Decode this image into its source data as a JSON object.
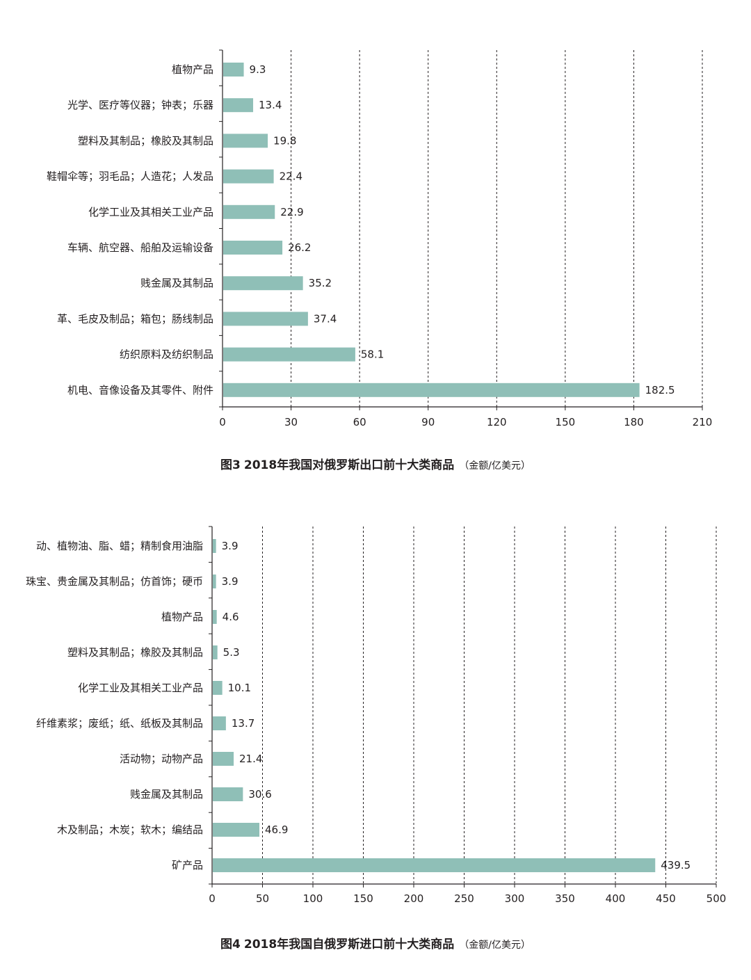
{
  "chart_data": [
    {
      "type": "bar",
      "orientation": "horizontal",
      "figure_number": "图3",
      "title": "2018年我国对俄罗斯出口前十大类商品",
      "unit": "（金额/亿美元）",
      "categories": [
        "植物产品",
        "光学、医疗等仪器；钟表；乐器",
        "塑料及其制品；橡胶及其制品",
        "鞋帽伞等；羽毛品；人造花；人发品",
        "化学工业及其相关工业产品",
        "车辆、航空器、船舶及运输设备",
        "贱金属及其制品",
        "革、毛皮及制品；箱包；肠线制品",
        "纺织原料及纺织制品",
        "机电、音像设备及其零件、附件"
      ],
      "values": [
        9.3,
        13.4,
        19.8,
        22.4,
        22.9,
        26.2,
        35.2,
        37.4,
        58.1,
        182.5
      ],
      "value_labels": [
        "9.3",
        "13.4",
        "19.8",
        "22.4",
        "22.9",
        "26.2",
        "35.2",
        "37.4",
        "58.1",
        "182.5"
      ],
      "xlim": [
        0,
        210
      ],
      "ticks": [
        0,
        30,
        60,
        90,
        120,
        150,
        180,
        210
      ],
      "tick_labels": [
        "0",
        "30",
        "60",
        "90",
        "120",
        "150",
        "180",
        "210"
      ],
      "grid": "vertical dashed",
      "bar_color": "#8fbfb7"
    },
    {
      "type": "bar",
      "orientation": "horizontal",
      "figure_number": "图4",
      "title": "2018年我国自俄罗斯进口前十大类商品",
      "unit": "（金额/亿美元）",
      "categories": [
        "动、植物油、脂、蜡；精制食用油脂",
        "珠宝、贵金属及其制品；仿首饰；硬币",
        "植物产品",
        "塑料及其制品；橡胶及其制品",
        "化学工业及其相关工业产品",
        "纤维素浆；废纸；纸、纸板及其制品",
        "活动物；动物产品",
        "贱金属及其制品",
        "木及制品；木炭；软木；编结品",
        "矿产品"
      ],
      "values": [
        3.9,
        3.9,
        4.6,
        5.3,
        10.1,
        13.7,
        21.4,
        30.6,
        46.9,
        439.5
      ],
      "value_labels": [
        "3.9",
        "3.9",
        "4.6",
        "5.3",
        "10.1",
        "13.7",
        "21.4",
        "30.6",
        "46.9",
        "439.5"
      ],
      "xlim": [
        0,
        500
      ],
      "ticks": [
        0,
        50,
        100,
        150,
        200,
        250,
        300,
        350,
        400,
        450,
        500
      ],
      "tick_labels": [
        "0",
        "50",
        "100",
        "150",
        "200",
        "250",
        "300",
        "350",
        "400",
        "450",
        "500"
      ],
      "grid": "vertical dashed",
      "bar_color": "#8fbfb7"
    }
  ]
}
